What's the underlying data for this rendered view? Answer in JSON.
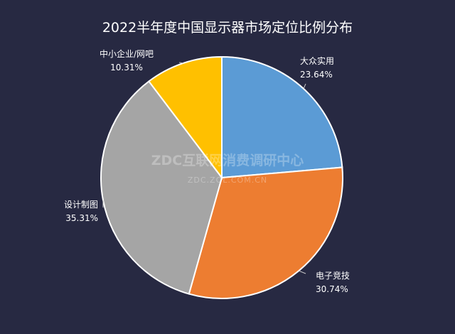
{
  "chart_data": {
    "type": "pie",
    "title": "2022半年度中国显示器市场定位比例分布",
    "slices": [
      {
        "label": "大众实用",
        "value": 23.64,
        "value_text": "23.64%",
        "color": "#5b9bd5"
      },
      {
        "label": "电子竞技",
        "value": 30.74,
        "value_text": "30.74%",
        "color": "#ed7d31"
      },
      {
        "label": "设计制图",
        "value": 35.31,
        "value_text": "35.31%",
        "color": "#a5a5a5"
      },
      {
        "label": "中小企业/网吧",
        "value": 10.31,
        "value_text": "10.31%",
        "color": "#ffc000"
      }
    ],
    "start_angle_deg": 0,
    "direction": "clockwise",
    "legend": "none"
  },
  "watermark": {
    "main": "ZDC互联网消费调研中心",
    "sub": "ZDC.ZOL.COM.CN"
  },
  "colors": {
    "background": "#272942",
    "slice_border": "#ffffff",
    "leader_line": "#c8c8c8",
    "text": "#ffffff"
  }
}
